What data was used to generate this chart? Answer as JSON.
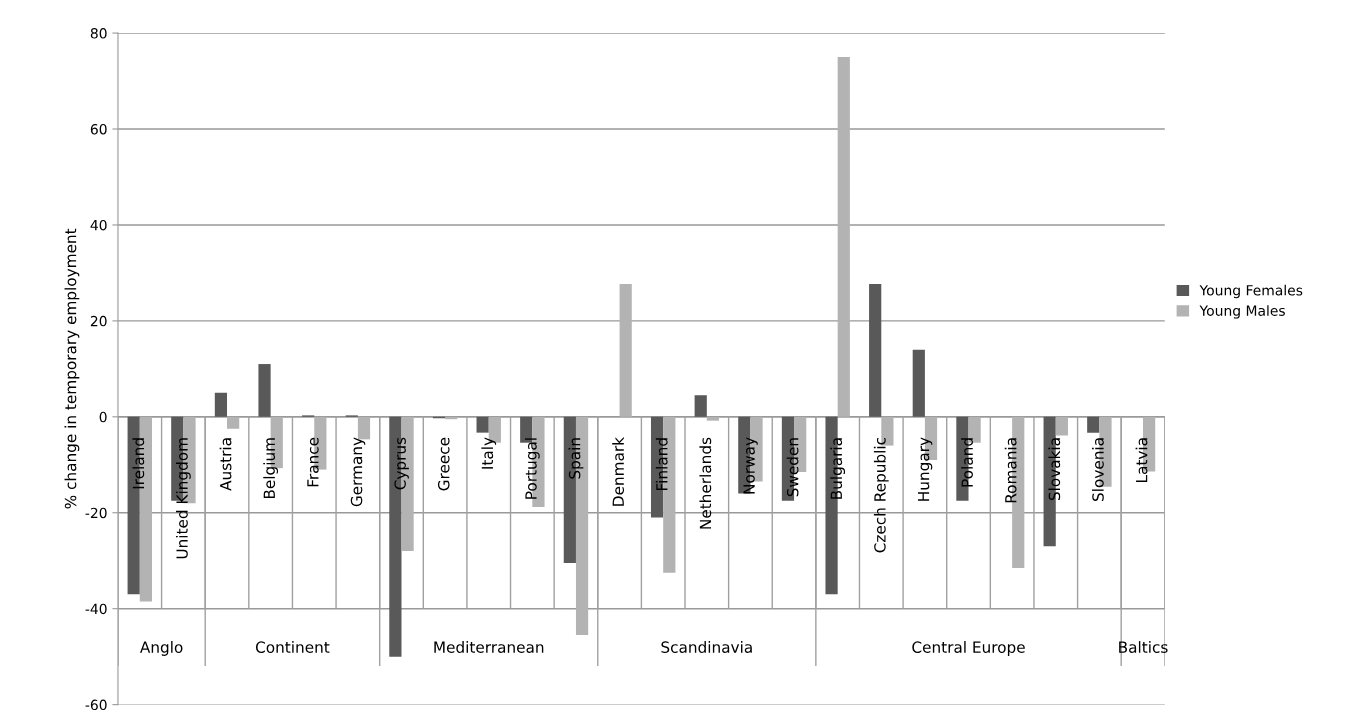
{
  "chart_data": {
    "type": "bar",
    "ylabel": "% change in temporary employment",
    "categories": [
      "Ireland",
      "United Kingdom",
      "Austria",
      "Belgium",
      "France",
      "Germany",
      "Cyprus",
      "Greece",
      "Italy",
      "Portugal",
      "Spain",
      "Denmark",
      "Finland",
      "Netherlands",
      "Norway",
      "Sweden",
      "Bulgaria",
      "Czech Republic",
      "Hungary",
      "Poland",
      "Romania",
      "Slovakia",
      "Slovenia",
      "Latvia"
    ],
    "series": [
      {
        "name": "Young Females",
        "color": "#595959",
        "values": [
          -37,
          -17.5,
          5,
          11,
          0.3,
          0.3,
          -50,
          -0.3,
          -3.3,
          -5.4,
          -30.5,
          0,
          -21,
          4.5,
          -16,
          -17.5,
          -37,
          27.7,
          14,
          -17.5,
          0,
          -27,
          -3.3,
          0
        ]
      },
      {
        "name": "Young Males",
        "color": "#b3b3b3",
        "values": [
          -38.5,
          -18,
          -2.5,
          -10.7,
          -11,
          -4.7,
          -28,
          -0.5,
          -5.4,
          -18.8,
          -45.5,
          27.7,
          -32.5,
          -0.8,
          -13.5,
          -11.5,
          75,
          -6,
          -9,
          -5.4,
          -31.5,
          -3.9,
          -14.6,
          -11.4
        ]
      }
    ],
    "annotations": [
      "Anglo",
      "Continent",
      "Mediterranean",
      "Scandinavia",
      "Central Europe",
      "Baltics"
    ],
    "ylim": [
      -60,
      80
    ],
    "yticks": [
      -60,
      -40,
      -20,
      0,
      20,
      40,
      60,
      80
    ],
    "grid": "y",
    "legend": "right"
  }
}
